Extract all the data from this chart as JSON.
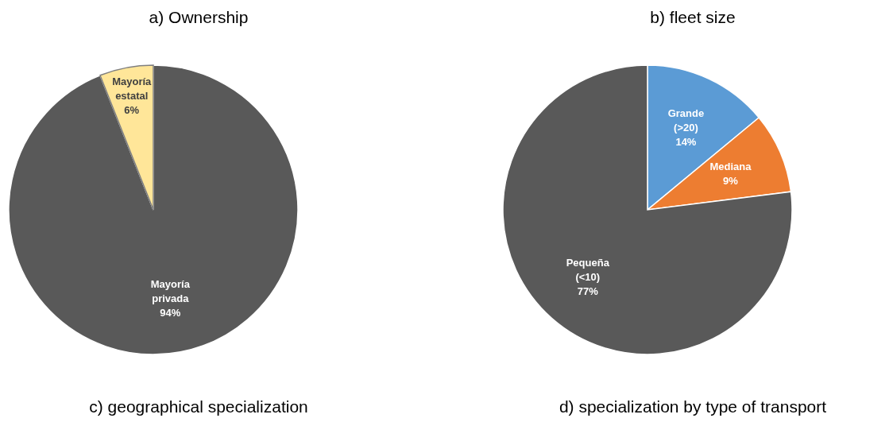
{
  "chart_data": [
    {
      "type": "pie",
      "title": "a) Ownership",
      "categories": [
        "Mayoría privada",
        "Mayoría estatal"
      ],
      "values": [
        94,
        6
      ],
      "colors": [
        "#595959",
        "#ffe699"
      ],
      "value_labels": [
        "94%",
        "6%"
      ]
    },
    {
      "type": "pie",
      "title": "b) fleet size",
      "categories": [
        "Grande (>20)",
        "Mediana",
        "Pequeña (<10)"
      ],
      "values": [
        14,
        9,
        77
      ],
      "colors": [
        "#5b9bd5",
        "#ed7d31",
        "#595959"
      ],
      "value_labels": [
        "14%",
        "9%",
        "77%"
      ]
    },
    {
      "type": "other",
      "title": "c) geographical specialization"
    },
    {
      "type": "other",
      "title": "d) specialization by type of transport"
    }
  ]
}
